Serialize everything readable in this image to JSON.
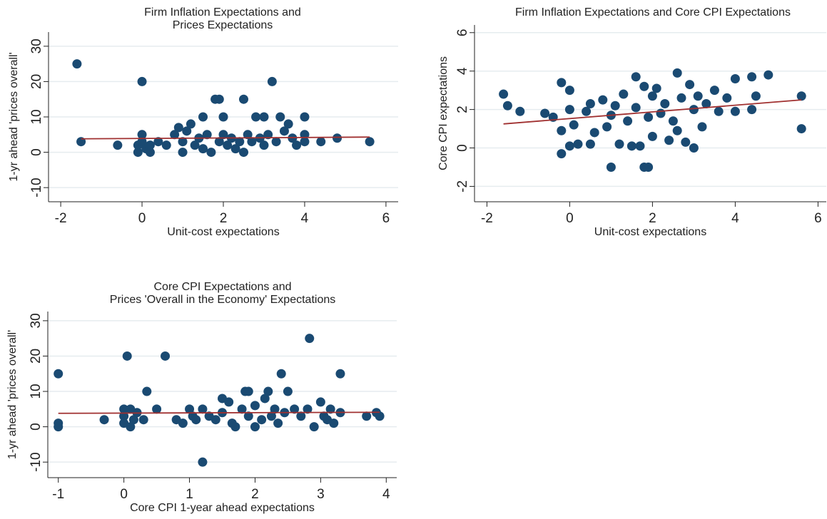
{
  "chart_data": [
    {
      "type": "scatter",
      "title": [
        "Firm Inflation Expectations and",
        "Prices  Expectations"
      ],
      "x_label": "Unit-cost expectations",
      "y_label": "1-yr ahead 'prices overall'",
      "color": "#1a4a72",
      "x": [
        -1.6,
        -1.5,
        -0.6,
        -0.1,
        -0.1,
        0,
        0,
        0,
        0.1,
        0.2,
        0.2,
        0.4,
        0.6,
        0.8,
        0.9,
        1,
        1,
        1.1,
        1.2,
        1.3,
        1.4,
        1.5,
        1.5,
        1.6,
        1.7,
        1.8,
        1.9,
        1.9,
        2,
        2,
        2.1,
        2.2,
        2.3,
        2.4,
        2.5,
        2.5,
        2.6,
        2.7,
        2.8,
        2.9,
        3,
        3,
        3.1,
        3.2,
        3.3,
        3.4,
        3.5,
        3.6,
        3.7,
        3.8,
        4,
        4,
        4,
        4.4,
        4.8,
        5.6
      ],
      "values": [
        25,
        3,
        2,
        0,
        2,
        5,
        20,
        3,
        1,
        0,
        2,
        3,
        2,
        5,
        7,
        0,
        3,
        6,
        8,
        2,
        4,
        10,
        1,
        5,
        0,
        15,
        15,
        3,
        10,
        5,
        2,
        4,
        1,
        3,
        15,
        0,
        5,
        3,
        10,
        4,
        10,
        2,
        5,
        20,
        3,
        10,
        6,
        8,
        4,
        2,
        10,
        5,
        3,
        3,
        4,
        3
      ],
      "fit_line": {
        "color": "#a03030",
        "x": [
          -1.5,
          5.6
        ],
        "values": [
          3.8,
          4.3
        ]
      },
      "xlim": [
        -2.3,
        6.3
      ],
      "ylim": [
        -14,
        34
      ],
      "xticks": [
        -2,
        0,
        2,
        4,
        6
      ],
      "yticks": [
        -10,
        0,
        10,
        20,
        30
      ],
      "grid": true
    },
    {
      "type": "scatter",
      "title": [
        "Firm Inflation Expectations and Core CPI Expectations"
      ],
      "x_label": "Unit-cost expectations",
      "y_label": "Core CPI expectations",
      "color": "#1a4a72",
      "x": [
        -1.6,
        -1.5,
        -1.2,
        -0.6,
        -0.4,
        -0.2,
        -0.2,
        -0.2,
        0,
        0,
        0,
        0.1,
        0.2,
        0.4,
        0.5,
        0.5,
        0.6,
        0.8,
        0.9,
        1,
        1,
        1.1,
        1.2,
        1.3,
        1.4,
        1.5,
        1.6,
        1.6,
        1.7,
        1.8,
        1.8,
        1.9,
        1.9,
        2,
        2,
        2.1,
        2.2,
        2.3,
        2.4,
        2.5,
        2.6,
        2.6,
        2.7,
        2.8,
        2.9,
        3,
        3,
        3.1,
        3.2,
        3.3,
        3.5,
        3.6,
        3.8,
        4,
        4,
        4.4,
        4.4,
        4.5,
        4.8,
        5.6,
        5.6
      ],
      "values": [
        2.8,
        2.2,
        1.9,
        1.8,
        1.6,
        3.4,
        0.9,
        -0.3,
        3,
        2,
        0.1,
        1.2,
        0.2,
        1.9,
        2.3,
        0.2,
        0.8,
        2.5,
        1.1,
        -1,
        1.7,
        2.2,
        0.2,
        2.8,
        1.4,
        0.1,
        3.7,
        2.1,
        0.1,
        -1,
        3.2,
        -1,
        1.6,
        0.6,
        2.7,
        3.1,
        1.8,
        2.3,
        0.4,
        1.4,
        3.9,
        0.9,
        2.6,
        0.3,
        3.3,
        0,
        2,
        2.7,
        1.1,
        2.3,
        3,
        1.9,
        2.6,
        3.6,
        1.9,
        3.7,
        2,
        2.7,
        3.8,
        2.7,
        1
      ],
      "fit_line": {
        "color": "#a03030",
        "x": [
          -1.6,
          5.6
        ],
        "values": [
          1.25,
          2.5
        ]
      },
      "xlim": [
        -2.3,
        6.2
      ],
      "ylim": [
        -2.8,
        6.4
      ],
      "xticks": [
        -2,
        0,
        2,
        4,
        6
      ],
      "yticks": [
        -2,
        0,
        2,
        4,
        6
      ],
      "grid": true
    },
    {
      "type": "scatter",
      "title": [
        "Core CPI Expectations and",
        "Prices 'Overall in the Economy' Expectations"
      ],
      "x_label": "Core CPI 1-year ahead expectations",
      "y_label": "1-yr ahead 'prices overall'",
      "color": "#1a4a72",
      "x": [
        -1,
        -1,
        -1,
        -0.3,
        0,
        0,
        0,
        0.05,
        0.1,
        0.1,
        0.15,
        0.2,
        0.3,
        0.35,
        0.5,
        0.63,
        0.8,
        0.9,
        1,
        1.05,
        1.1,
        1.2,
        1.2,
        1.3,
        1.4,
        1.5,
        1.5,
        1.6,
        1.65,
        1.7,
        1.8,
        1.85,
        1.9,
        1.9,
        2,
        2,
        2.1,
        2.15,
        2.2,
        2.25,
        2.3,
        2.35,
        2.4,
        2.45,
        2.5,
        2.6,
        2.7,
        2.8,
        2.83,
        2.9,
        3,
        3.05,
        3.1,
        3.15,
        3.2,
        3.3,
        3.3,
        3.7,
        3.85,
        3.9
      ],
      "values": [
        15,
        1,
        0,
        2,
        5,
        3,
        1,
        20,
        0,
        5,
        2,
        4,
        2,
        10,
        5,
        20,
        2,
        1,
        5,
        3,
        2,
        -10,
        5,
        3,
        2,
        8,
        4,
        7,
        1,
        0,
        5,
        10,
        10,
        3,
        0,
        6,
        2,
        8,
        10,
        3,
        5,
        1,
        15,
        4,
        10,
        5,
        3,
        5,
        25,
        0,
        7,
        3,
        2,
        5,
        1,
        15,
        4,
        3,
        4,
        3
      ],
      "fit_line": {
        "color": "#a03030",
        "x": [
          -1,
          3.9
        ],
        "values": [
          3.8,
          4.1
        ]
      },
      "xlim": [
        -1.16,
        4.16
      ],
      "ylim": [
        -14.4,
        32.6
      ],
      "xticks": [
        -1,
        0,
        1,
        2,
        3,
        4
      ],
      "yticks": [
        -10,
        0,
        10,
        20,
        30
      ],
      "grid": true
    }
  ]
}
